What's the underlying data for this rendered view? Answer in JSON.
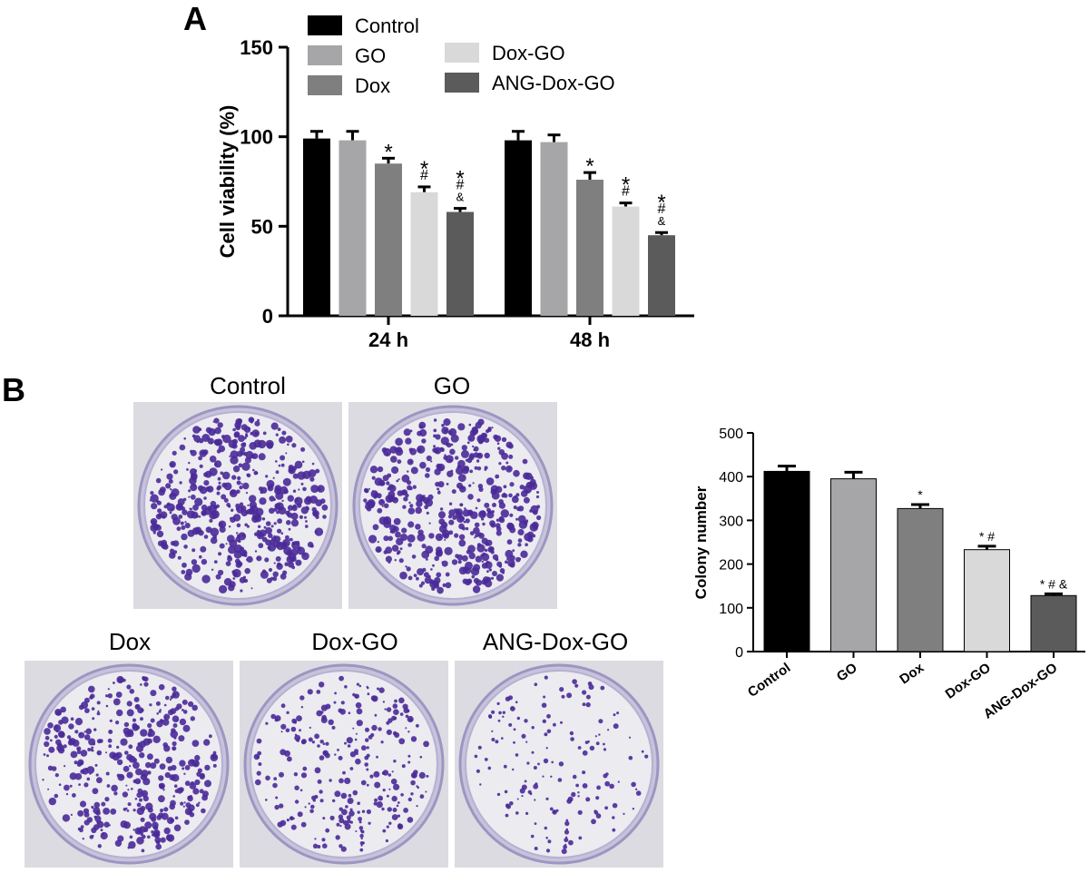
{
  "panel_labels": {
    "a": "A",
    "b": "B"
  },
  "colors": {
    "Control": "#000000",
    "GO": "#a6a6a8",
    "Dox": "#7f7f7f",
    "Dox-GO": "#d9d9d9",
    "ANG-Dox-GO": "#5b5b5b",
    "stain": "#4a2a98",
    "dish_bg": "#ecebf0"
  },
  "plates": {
    "top": [
      "Control",
      "GO"
    ],
    "bottom": [
      "Dox",
      "Dox-GO",
      "ANG-Dox-GO"
    ],
    "colony_density": [
      1.0,
      0.96,
      0.8,
      0.55,
      0.32
    ]
  },
  "chart_data": [
    {
      "type": "bar",
      "ylabel": "Cell viability (%)",
      "xlabel": "",
      "categories": [
        "24 h",
        "48 h"
      ],
      "ylim": [
        0,
        150
      ],
      "yticks": [
        0,
        50,
        100,
        150
      ],
      "legend_position": "top",
      "series": [
        {
          "name": "Control",
          "values": [
            99,
            98
          ],
          "errors": [
            4,
            5
          ],
          "annotations": [
            "",
            ""
          ]
        },
        {
          "name": "GO",
          "values": [
            98,
            97
          ],
          "errors": [
            5,
            4
          ],
          "annotations": [
            "",
            ""
          ]
        },
        {
          "name": "Dox",
          "values": [
            85,
            76
          ],
          "errors": [
            3,
            4
          ],
          "annotations": [
            "*",
            "*"
          ]
        },
        {
          "name": "Dox-GO",
          "values": [
            69,
            61
          ],
          "errors": [
            3,
            2
          ],
          "annotations": [
            "*#",
            "*#"
          ]
        },
        {
          "name": "ANG-Dox-GO",
          "values": [
            58,
            45
          ],
          "errors": [
            2,
            1.5
          ],
          "annotations": [
            "*#&",
            "*#&"
          ]
        }
      ]
    },
    {
      "type": "bar",
      "ylabel": "Colony number",
      "xlabel": "",
      "categories": [
        "Control",
        "GO",
        "Dox",
        "Dox-GO",
        "ANG-Dox-GO"
      ],
      "ylim": [
        0,
        500
      ],
      "yticks": [
        0,
        100,
        200,
        300,
        400,
        500
      ],
      "values": [
        412,
        395,
        327,
        233,
        128
      ],
      "errors": [
        12,
        15,
        9,
        8,
        4
      ],
      "annotations": [
        "",
        "",
        "*",
        "* #",
        "* # &"
      ]
    }
  ]
}
